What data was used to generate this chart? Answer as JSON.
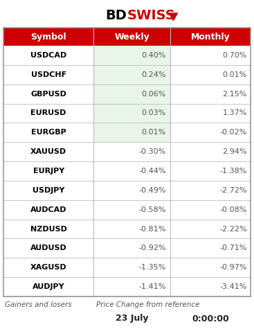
{
  "symbols": [
    "USDCAD",
    "USDCHF",
    "GBPUSD",
    "EURUSD",
    "EURGBP",
    "XAUUSD",
    "EURJPY",
    "USDJPY",
    "AUDCAD",
    "NZDUSD",
    "AUDUSD",
    "XAGUSD",
    "AUDJPY"
  ],
  "weekly": [
    "0.40%",
    "0.24%",
    "0.06%",
    "0.03%",
    "0.01%",
    "-0.30%",
    "-0.44%",
    "-0.49%",
    "-0.58%",
    "-0.81%",
    "-0.92%",
    "-1.35%",
    "-1.41%"
  ],
  "monthly": [
    "0.70%",
    "0.01%",
    "2.15%",
    "1.37%",
    "-0.02%",
    "2.94%",
    "-1.38%",
    "-2.72%",
    "-0.08%",
    "-2.22%",
    "-0.71%",
    "-0.97%",
    "-3.41%"
  ],
  "n_green_rows": 5,
  "header_bg": "#CC0000",
  "header_text_color": "#FFFFFF",
  "row_bg_white": "#FFFFFF",
  "row_bg_green": "#E8F5E8",
  "separator_color": "#BBBBBB",
  "symbol_text_color": "#000000",
  "value_text_color": "#555555",
  "footer_text_color": "#555555",
  "border_color": "#999999",
  "logo_bd_color": "#000000",
  "logo_swiss_color": "#CC0000",
  "footer_label": "Gainers and losers",
  "footer_desc": "Price Change from reference",
  "date_label": "23 July",
  "time_label": "0:00:00"
}
